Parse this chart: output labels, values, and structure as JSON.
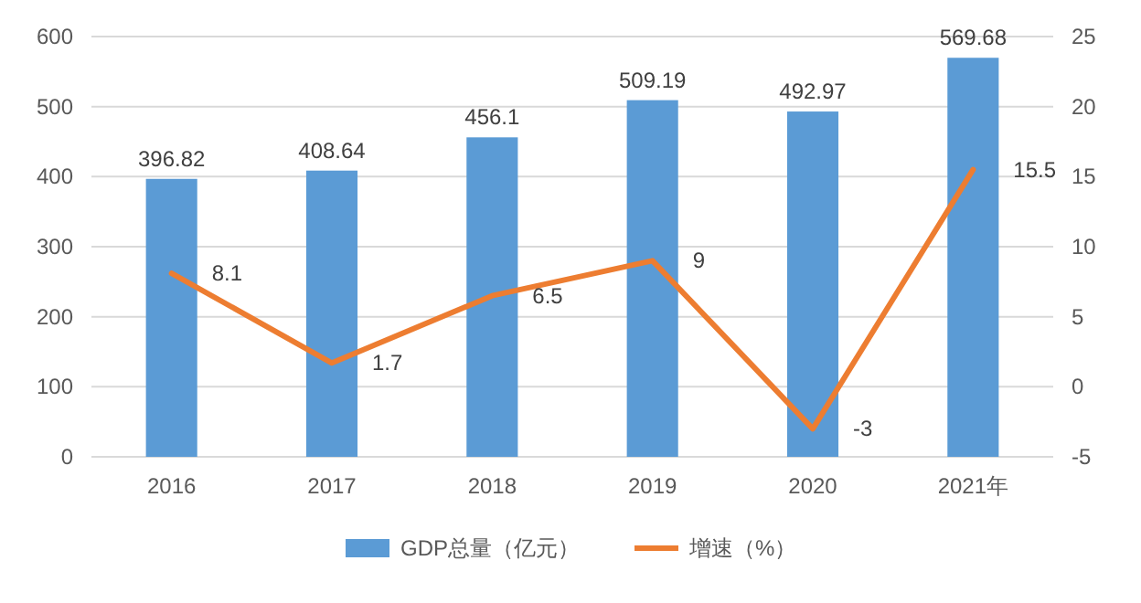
{
  "chart_data": {
    "type": "bar",
    "categories": [
      "2016",
      "2017",
      "2018",
      "2019",
      "2020",
      "2021年"
    ],
    "series": [
      {
        "name": "GDP总量（亿元）",
        "color": "#5b9bd5",
        "values": [
          396.82,
          408.64,
          456.1,
          509.19,
          492.97,
          569.68
        ]
      },
      {
        "name": "增速（%）",
        "type": "line",
        "axis": "y2",
        "color": "#ed7d31",
        "values": [
          8.1,
          1.7,
          6.5,
          9,
          -3,
          15.5
        ]
      }
    ],
    "ylim": [
      0,
      600
    ],
    "yticks": [
      0,
      100,
      200,
      300,
      400,
      500,
      600
    ],
    "y2lim": [
      -5,
      25
    ],
    "y2ticks": [
      -5,
      0,
      5,
      10,
      15,
      20,
      25
    ],
    "grid": "y",
    "legend": "bottom",
    "data_labels": true
  }
}
